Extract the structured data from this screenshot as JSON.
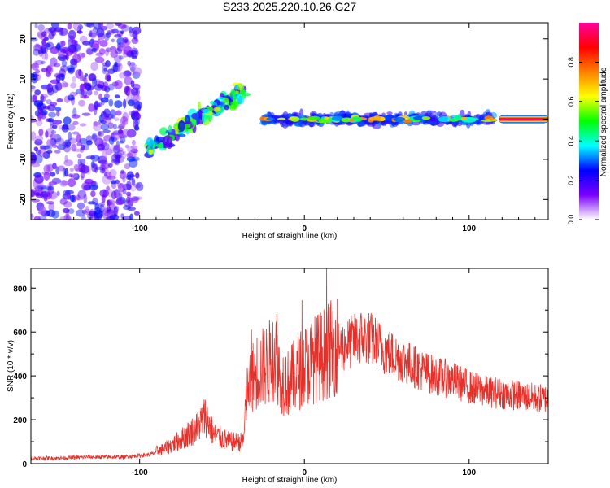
{
  "title": "S233.2025.220.10.26.G27",
  "chart_data": [
    {
      "type": "heatmap",
      "xlabel": "Height of straight line (km)",
      "ylabel": "Frequency (Hz)",
      "xlim": [
        -166,
        148
      ],
      "ylim": [
        -25,
        24
      ],
      "xticks": [
        -100,
        0,
        100
      ],
      "xtick_labels": [
        "-100",
        "0",
        "100"
      ],
      "yticks": [
        -20,
        -10,
        0,
        10,
        20
      ],
      "ytick_labels": [
        "-20",
        "-10",
        "0",
        "10",
        "20"
      ],
      "colorbar": {
        "label": "Normalized spectral amplitude",
        "range": [
          0,
          1
        ],
        "ticks": [
          0,
          0.2,
          0.4,
          0.6,
          0.8
        ],
        "tick_labels": [
          "0.0",
          "0.2",
          "0.4",
          "0.6",
          "0.8"
        ],
        "colors": [
          "#ffffff",
          "#7a00ff",
          "#0000ff",
          "#00ffff",
          "#00ff00",
          "#ffff00",
          "#ff8000",
          "#ff0000",
          "#ff00a0"
        ]
      },
      "features": [
        {
          "desc": "noise",
          "x": [
            -166,
            -100
          ],
          "y": [
            -25,
            24
          ],
          "amp": 0.15
        },
        {
          "desc": "rising",
          "x": [
            -95,
            -35
          ],
          "y": [
            -8,
            8
          ],
          "amp": 0.5
        },
        {
          "desc": "steady",
          "x": [
            -25,
            115
          ],
          "y": [
            -1,
            1
          ],
          "amp": 0.55
        },
        {
          "desc": "strong",
          "x": [
            118,
            148
          ],
          "y": [
            0,
            0
          ],
          "amp": 0.95
        }
      ]
    },
    {
      "type": "line",
      "xlabel": "Height of straight line (km)",
      "ylabel": "SNR (10 * v/v)",
      "xlim": [
        -166,
        148
      ],
      "ylim": [
        0,
        890
      ],
      "xticks": [
        -100,
        0,
        100
      ],
      "xtick_labels": [
        "-100",
        "0",
        "100"
      ],
      "yticks": [
        0,
        200,
        400,
        600,
        800
      ],
      "ytick_labels": [
        "0",
        "200",
        "400",
        "600",
        "800"
      ],
      "series": [
        {
          "color": "#e8302a",
          "x": [
            -166,
            -150,
            -130,
            -110,
            -95,
            -85,
            -75,
            -65,
            -60,
            -55,
            -45,
            -37,
            -35,
            -30,
            -25,
            -20,
            -17,
            -15,
            -10,
            0,
            10,
            20,
            30,
            35,
            40,
            50,
            60,
            70,
            80,
            90,
            100,
            110,
            120,
            130,
            140,
            148
          ],
          "y": [
            25,
            25,
            30,
            30,
            40,
            60,
            100,
            150,
            200,
            120,
            90,
            90,
            300,
            400,
            420,
            450,
            500,
            380,
            350,
            430,
            470,
            520,
            560,
            580,
            570,
            510,
            470,
            430,
            400,
            380,
            350,
            330,
            320,
            310,
            300,
            295
          ]
        }
      ]
    }
  ]
}
